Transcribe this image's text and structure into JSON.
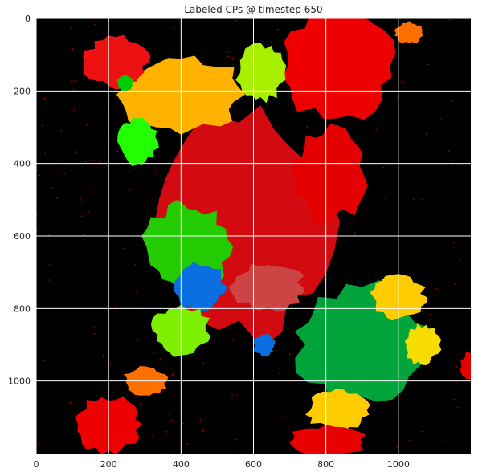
{
  "chart_data": {
    "type": "heatmap",
    "title": "Labeled CPs @ timestep 650",
    "xlabel": "",
    "ylabel": "",
    "xlim": [
      0,
      1200
    ],
    "ylim": [
      1200,
      0
    ],
    "y_inverted": true,
    "grid": true,
    "grid_color": "#ffffff",
    "background_color": "#000000",
    "x_ticks": [
      0,
      200,
      400,
      600,
      800,
      1000
    ],
    "y_ticks": [
      0,
      200,
      400,
      600,
      800,
      1000
    ],
    "regions": [
      {
        "label": "red-main",
        "color": "#d30b10",
        "cx": 560,
        "cy": 560,
        "rx": 260,
        "ry": 320
      },
      {
        "label": "red-top",
        "color": "#ee0000",
        "cx": 830,
        "cy": 130,
        "rx": 160,
        "ry": 150
      },
      {
        "label": "red-mid-right",
        "color": "#e50000",
        "cx": 810,
        "cy": 430,
        "rx": 100,
        "ry": 130
      },
      {
        "label": "orange-yellow",
        "color": "#ffb300",
        "cx": 400,
        "cy": 210,
        "rx": 170,
        "ry": 110
      },
      {
        "label": "yellow-green-top",
        "color": "#a8f000",
        "cx": 620,
        "cy": 150,
        "rx": 65,
        "ry": 80
      },
      {
        "label": "bright-green-left",
        "color": "#22ff00",
        "cx": 280,
        "cy": 340,
        "rx": 55,
        "ry": 65
      },
      {
        "label": "green-mid",
        "color": "#22cc00",
        "cx": 420,
        "cy": 630,
        "rx": 120,
        "ry": 120
      },
      {
        "label": "blue-mid",
        "color": "#0a6fe0",
        "cx": 450,
        "cy": 740,
        "rx": 70,
        "ry": 70
      },
      {
        "label": "salmon-center",
        "color": "#cc4444",
        "cx": 640,
        "cy": 740,
        "rx": 100,
        "ry": 65
      },
      {
        "label": "green-large",
        "color": "#00a43a",
        "cx": 900,
        "cy": 900,
        "rx": 190,
        "ry": 165
      },
      {
        "label": "yellow-right",
        "color": "#ffcc00",
        "cx": 1000,
        "cy": 770,
        "rx": 75,
        "ry": 60
      },
      {
        "label": "yellow-far-right",
        "color": "#f7dc00",
        "cx": 1065,
        "cy": 900,
        "rx": 50,
        "ry": 55
      },
      {
        "label": "yellow-lower",
        "color": "#ffcc00",
        "cx": 830,
        "cy": 1080,
        "rx": 85,
        "ry": 55
      },
      {
        "label": "lime-lower-left",
        "color": "#7cf000",
        "cx": 400,
        "cy": 860,
        "rx": 80,
        "ry": 70
      },
      {
        "label": "blue-small",
        "color": "#0a6fe0",
        "cx": 630,
        "cy": 900,
        "rx": 30,
        "ry": 30
      },
      {
        "label": "red-lower-left",
        "color": "#ee0000",
        "cx": 200,
        "cy": 1120,
        "rx": 90,
        "ry": 80
      },
      {
        "label": "red-bottom",
        "color": "#e60000",
        "cx": 800,
        "cy": 1170,
        "rx": 110,
        "ry": 45
      },
      {
        "label": "orange-left",
        "color": "#ff7000",
        "cx": 300,
        "cy": 1000,
        "rx": 60,
        "ry": 40
      },
      {
        "label": "red-upper-left",
        "color": "#ee1111",
        "cx": 220,
        "cy": 120,
        "rx": 90,
        "ry": 70
      },
      {
        "label": "green-small",
        "color": "#00cc00",
        "cx": 245,
        "cy": 180,
        "rx": 22,
        "ry": 22
      },
      {
        "label": "orange-top-right",
        "color": "#ff6f00",
        "cx": 1030,
        "cy": 40,
        "rx": 40,
        "ry": 30
      },
      {
        "label": "red-right-small",
        "color": "#e50000",
        "cx": 1200,
        "cy": 960,
        "rx": 30,
        "ry": 40
      }
    ]
  }
}
